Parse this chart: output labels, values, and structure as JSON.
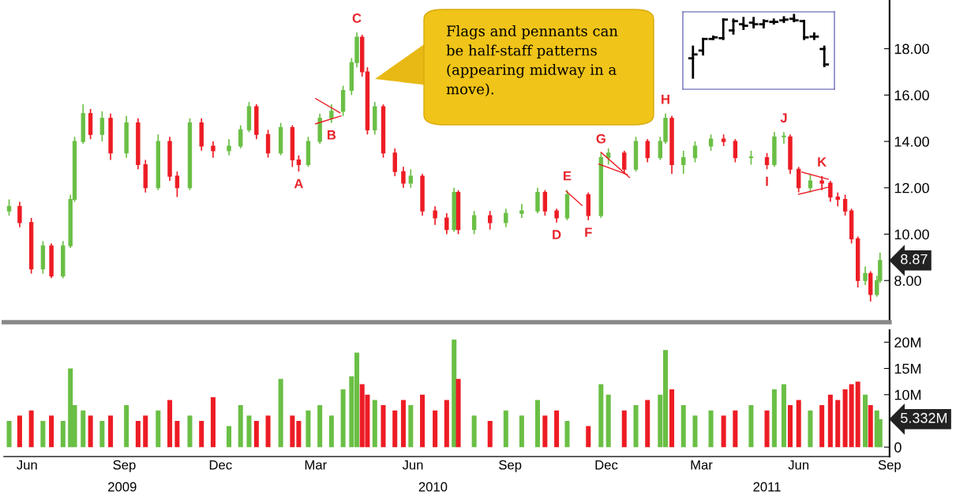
{
  "chart_data": [
    {
      "type": "candlestick",
      "x": [
        "2009-05-29",
        "2009-06-08",
        "2009-06-19",
        "2009-06-30",
        "2009-07-08",
        "2009-07-19",
        "2009-07-26",
        "2009-07-30",
        "2009-08-07",
        "2009-08-14",
        "2009-08-25",
        "2009-09-02",
        "2009-09-17",
        "2009-09-28",
        "2009-10-05",
        "2009-10-17",
        "2009-10-28",
        "2009-11-04",
        "2009-11-16",
        "2009-11-27",
        "2009-12-08",
        "2009-12-23",
        "2010-01-03",
        "2010-01-11",
        "2010-01-18",
        "2010-01-29",
        "2010-02-10",
        "2010-02-21",
        "2010-02-27",
        "2010-03-08",
        "2010-03-19",
        "2010-03-30",
        "2010-04-10",
        "2010-04-18",
        "2010-04-23",
        "2010-04-28",
        "2010-05-03",
        "2010-05-10",
        "2010-05-18",
        "2010-05-29",
        "2010-06-06",
        "2010-06-13",
        "2010-06-24",
        "2010-07-06",
        "2010-07-17",
        "2010-07-24",
        "2010-07-28",
        "2010-08-12",
        "2010-08-27",
        "2010-09-11",
        "2010-09-26",
        "2010-10-11",
        "2010-10-18",
        "2010-10-29",
        "2010-11-08",
        "2010-11-28",
        "2010-12-10",
        "2010-12-17",
        "2011-01-01",
        "2011-01-12",
        "2011-01-23",
        "2011-02-04",
        "2011-02-09",
        "2011-02-15",
        "2011-02-26",
        "2011-03-09",
        "2011-03-24",
        "2011-04-05",
        "2011-04-16",
        "2011-05-01",
        "2011-05-16",
        "2011-05-23",
        "2011-06-01",
        "2011-06-07",
        "2011-06-15",
        "2011-06-26",
        "2011-07-07",
        "2011-07-15",
        "2011-07-22",
        "2011-07-29",
        "2011-08-04",
        "2011-08-10",
        "2011-08-17",
        "2011-08-22",
        "2011-08-28",
        "2011-08-31"
      ],
      "ohlc": [
        [
          11.0,
          11.5,
          10.8,
          11.2
        ],
        [
          11.2,
          11.4,
          10.3,
          10.5
        ],
        [
          10.5,
          10.7,
          8.3,
          8.5
        ],
        [
          8.5,
          9.7,
          8.3,
          9.5
        ],
        [
          9.5,
          9.6,
          8.1,
          8.2
        ],
        [
          8.2,
          9.7,
          8.1,
          9.5
        ],
        [
          9.5,
          11.7,
          9.4,
          11.5
        ],
        [
          11.5,
          14.2,
          11.4,
          14.0
        ],
        [
          14.0,
          15.6,
          13.9,
          15.2
        ],
        [
          15.2,
          15.4,
          14.1,
          14.3
        ],
        [
          14.3,
          15.3,
          14.0,
          15.0
        ],
        [
          15.0,
          15.2,
          13.2,
          13.5
        ],
        [
          13.5,
          15.1,
          13.3,
          14.8
        ],
        [
          14.8,
          15.0,
          12.8,
          13.0
        ],
        [
          13.0,
          13.2,
          11.8,
          12.0
        ],
        [
          12.0,
          14.3,
          11.9,
          14.0
        ],
        [
          14.0,
          14.2,
          12.3,
          12.5
        ],
        [
          12.5,
          12.7,
          11.6,
          12.0
        ],
        [
          12.0,
          15.0,
          11.9,
          14.8
        ],
        [
          14.8,
          15.0,
          13.6,
          13.8
        ],
        [
          13.8,
          14.0,
          13.3,
          13.6
        ],
        [
          13.6,
          14.1,
          13.4,
          13.8
        ],
        [
          13.8,
          14.7,
          13.7,
          14.5
        ],
        [
          14.5,
          15.7,
          14.4,
          15.5
        ],
        [
          15.5,
          15.6,
          14.1,
          14.3
        ],
        [
          14.3,
          14.5,
          13.3,
          13.5
        ],
        [
          13.5,
          14.8,
          13.4,
          14.6
        ],
        [
          14.6,
          14.7,
          12.9,
          13.2
        ],
        [
          13.2,
          13.4,
          12.7,
          13.0
        ],
        [
          13.0,
          14.2,
          12.9,
          14.0
        ],
        [
          14.0,
          15.2,
          13.9,
          15.0
        ],
        [
          15.0,
          15.6,
          14.8,
          15.3
        ],
        [
          15.3,
          16.4,
          15.1,
          16.2
        ],
        [
          16.2,
          17.6,
          16.0,
          17.4
        ],
        [
          17.4,
          18.7,
          17.2,
          18.5
        ],
        [
          18.5,
          18.6,
          16.8,
          17.0
        ],
        [
          17.0,
          17.2,
          14.3,
          14.5
        ],
        [
          14.5,
          15.7,
          14.3,
          15.5
        ],
        [
          15.5,
          15.6,
          13.3,
          13.5
        ],
        [
          13.5,
          13.7,
          12.5,
          12.7
        ],
        [
          12.7,
          12.9,
          12.0,
          12.2
        ],
        [
          12.2,
          12.8,
          12.0,
          12.5
        ],
        [
          12.5,
          12.6,
          10.8,
          11.0
        ],
        [
          11.0,
          11.2,
          10.4,
          10.7
        ],
        [
          10.7,
          10.9,
          10.0,
          10.2
        ],
        [
          10.2,
          12.0,
          10.1,
          11.8
        ],
        [
          11.8,
          11.9,
          10.0,
          10.2
        ],
        [
          10.2,
          11.0,
          10.0,
          10.8
        ],
        [
          10.8,
          11.0,
          10.2,
          10.5
        ],
        [
          10.5,
          11.1,
          10.3,
          10.9
        ],
        [
          10.9,
          11.3,
          10.7,
          11.0
        ],
        [
          11.0,
          12.0,
          10.9,
          11.8
        ],
        [
          11.8,
          11.9,
          10.8,
          11.0
        ],
        [
          11.0,
          11.1,
          10.5,
          10.7
        ],
        [
          10.7,
          11.9,
          10.6,
          11.7
        ],
        [
          11.7,
          11.8,
          10.6,
          10.8
        ],
        [
          10.8,
          13.5,
          10.7,
          13.3
        ],
        [
          13.3,
          13.7,
          13.0,
          13.5
        ],
        [
          13.5,
          13.6,
          12.6,
          12.8
        ],
        [
          12.8,
          14.2,
          12.7,
          14.0
        ],
        [
          14.0,
          14.1,
          13.1,
          13.3
        ],
        [
          13.3,
          14.2,
          13.2,
          14.0
        ],
        [
          14.0,
          15.2,
          13.9,
          15.0
        ],
        [
          15.0,
          15.1,
          12.6,
          13.0
        ],
        [
          13.0,
          13.6,
          12.6,
          13.3
        ],
        [
          13.3,
          14.0,
          13.1,
          13.8
        ],
        [
          13.8,
          14.3,
          13.6,
          14.1
        ],
        [
          14.1,
          14.3,
          13.8,
          14.0
        ],
        [
          14.0,
          14.1,
          13.1,
          13.3
        ],
        [
          13.3,
          13.6,
          13.0,
          13.3
        ],
        [
          13.3,
          13.5,
          12.8,
          13.0
        ],
        [
          13.0,
          14.4,
          12.9,
          14.2
        ],
        [
          14.2,
          14.4,
          13.9,
          14.2
        ],
        [
          14.2,
          14.3,
          12.6,
          12.8
        ],
        [
          12.8,
          12.9,
          11.8,
          12.0
        ],
        [
          12.0,
          12.6,
          11.8,
          12.3
        ],
        [
          12.3,
          12.5,
          11.9,
          12.2
        ],
        [
          12.2,
          12.3,
          11.4,
          11.6
        ],
        [
          11.6,
          11.8,
          11.2,
          11.5
        ],
        [
          11.5,
          11.7,
          10.8,
          11.0
        ],
        [
          11.0,
          11.1,
          9.6,
          9.8
        ],
        [
          9.8,
          9.9,
          7.7,
          8.0
        ],
        [
          8.0,
          8.6,
          7.8,
          8.3
        ],
        [
          8.3,
          8.4,
          7.1,
          7.4
        ],
        [
          7.4,
          8.2,
          7.3,
          8.0
        ],
        [
          8.0,
          9.2,
          7.9,
          8.87
        ]
      ],
      "colors": [
        "#6abf45",
        "#ed1c24",
        "#ed1c24",
        "#6abf45",
        "#ed1c24",
        "#6abf45",
        "#6abf45",
        "#6abf45",
        "#6abf45",
        "#ed1c24",
        "#6abf45",
        "#ed1c24",
        "#6abf45",
        "#ed1c24",
        "#ed1c24",
        "#6abf45",
        "#ed1c24",
        "#ed1c24",
        "#6abf45",
        "#ed1c24",
        "#ed1c24",
        "#6abf45",
        "#6abf45",
        "#6abf45",
        "#ed1c24",
        "#ed1c24",
        "#6abf45",
        "#ed1c24",
        "#ed1c24",
        "#6abf45",
        "#6abf45",
        "#6abf45",
        "#6abf45",
        "#6abf45",
        "#6abf45",
        "#ed1c24",
        "#ed1c24",
        "#6abf45",
        "#ed1c24",
        "#ed1c24",
        "#ed1c24",
        "#6abf45",
        "#ed1c24",
        "#ed1c24",
        "#ed1c24",
        "#6abf45",
        "#ed1c24",
        "#6abf45",
        "#ed1c24",
        "#6abf45",
        "#6abf45",
        "#6abf45",
        "#ed1c24",
        "#ed1c24",
        "#6abf45",
        "#ed1c24",
        "#6abf45",
        "#6abf45",
        "#ed1c24",
        "#6abf45",
        "#ed1c24",
        "#6abf45",
        "#6abf45",
        "#ed1c24",
        "#6abf45",
        "#6abf45",
        "#6abf45",
        "#ed1c24",
        "#ed1c24",
        "#6abf45",
        "#ed1c24",
        "#6abf45",
        "#6abf45",
        "#ed1c24",
        "#ed1c24",
        "#6abf45",
        "#ed1c24",
        "#ed1c24",
        "#ed1c24",
        "#ed1c24",
        "#ed1c24",
        "#ed1c24",
        "#6abf45",
        "#ed1c24",
        "#6abf45",
        "#6abf45"
      ],
      "series": [
        {
          "type": "line",
          "color": "#ed1c24",
          "x": [
            "2010-03-15",
            "2010-04-07"
          ],
          "values": [
            15.85,
            15.24
          ]
        },
        {
          "type": "line",
          "color": "#ed1c24",
          "x": [
            "2010-03-15",
            "2010-04-08"
          ],
          "values": [
            14.76,
            15.1
          ]
        },
        {
          "type": "line",
          "color": "#ed1c24",
          "x": [
            "2010-11-07",
            "2010-11-22"
          ],
          "values": [
            11.86,
            11.24
          ]
        },
        {
          "type": "line",
          "color": "#ed1c24",
          "x": [
            "2010-12-10",
            "2011-01-06"
          ],
          "values": [
            13.53,
            12.44
          ]
        },
        {
          "type": "line",
          "color": "#ed1c24",
          "x": [
            "2010-12-08",
            "2011-01-04"
          ],
          "values": [
            13.02,
            12.57
          ]
        },
        {
          "type": "line",
          "color": "#ed1c24",
          "x": [
            "2011-06-18",
            "2011-07-13"
          ],
          "values": [
            12.68,
            12.37
          ]
        },
        {
          "type": "line",
          "color": "#ed1c24",
          "x": [
            "2011-06-15",
            "2011-07-16"
          ],
          "values": [
            11.72,
            12.06
          ]
        }
      ],
      "xlim": [
        "2009-05-24",
        "2011-09-09"
      ],
      "ylim": [
        6.2,
        20.1
      ],
      "yticks": [
        {
          "value": 8,
          "label": "8.00"
        },
        {
          "value": 10,
          "label": "10.00"
        },
        {
          "value": 12,
          "label": "12.00"
        },
        {
          "value": 14,
          "label": "14.00"
        },
        {
          "value": 16,
          "label": "16.00"
        },
        {
          "value": 18,
          "label": "18.00"
        }
      ],
      "tick_labels": "y",
      "annotations": [
        {
          "text": "A",
          "x": "2010-02-27",
          "y": 12.7
        },
        {
          "text": "B",
          "x": "2010-03-30",
          "y": 14.8
        },
        {
          "text": "C",
          "x": "2010-04-23",
          "y": 18.7
        },
        {
          "text": "D",
          "x": "2010-10-29",
          "y": 10.5
        },
        {
          "text": "E",
          "x": "2010-11-08",
          "y": 11.9
        },
        {
          "text": "F",
          "x": "2010-11-28",
          "y": 10.6
        },
        {
          "text": "G",
          "x": "2010-12-10",
          "y": 13.5
        },
        {
          "text": "H",
          "x": "2011-02-09",
          "y": 15.2
        },
        {
          "text": "I",
          "x": "2011-05-16",
          "y": 12.8
        },
        {
          "text": "J",
          "x": "2011-06-01",
          "y": 14.4
        },
        {
          "text": "K",
          "x": "2011-07-07",
          "y": 12.5
        },
        {
          "text": "8.87",
          "x": "2011-08-31",
          "y": 8.87
        },
        "Flags and pennants can\nbe half-staff patterns\n(appearing midway in a\nmove)."
      ]
    },
    {
      "type": "bar",
      "x": [
        "2009-05-29",
        "2009-06-08",
        "2009-06-19",
        "2009-06-30",
        "2009-07-08",
        "2009-07-19",
        "2009-07-26",
        "2009-07-30",
        "2009-08-07",
        "2009-08-14",
        "2009-08-25",
        "2009-09-02",
        "2009-09-17",
        "2009-09-28",
        "2009-10-05",
        "2009-10-17",
        "2009-10-28",
        "2009-11-04",
        "2009-11-16",
        "2009-11-27",
        "2009-12-08",
        "2009-12-23",
        "2010-01-03",
        "2010-01-11",
        "2010-01-18",
        "2010-01-29",
        "2010-02-10",
        "2010-02-21",
        "2010-02-27",
        "2010-03-08",
        "2010-03-19",
        "2010-03-30",
        "2010-04-10",
        "2010-04-18",
        "2010-04-23",
        "2010-04-28",
        "2010-05-03",
        "2010-05-10",
        "2010-05-18",
        "2010-05-29",
        "2010-06-06",
        "2010-06-13",
        "2010-06-24",
        "2010-07-06",
        "2010-07-17",
        "2010-07-24",
        "2010-07-28",
        "2010-08-12",
        "2010-08-27",
        "2010-09-11",
        "2010-09-26",
        "2010-10-11",
        "2010-10-18",
        "2010-10-29",
        "2010-11-08",
        "2010-11-28",
        "2010-12-10",
        "2010-12-17",
        "2011-01-01",
        "2011-01-12",
        "2011-01-23",
        "2011-02-04",
        "2011-02-09",
        "2011-02-15",
        "2011-02-26",
        "2011-03-09",
        "2011-03-24",
        "2011-04-05",
        "2011-04-16",
        "2011-05-01",
        "2011-05-16",
        "2011-05-23",
        "2011-06-01",
        "2011-06-07",
        "2011-06-15",
        "2011-06-26",
        "2011-07-07",
        "2011-07-15",
        "2011-07-22",
        "2011-07-29",
        "2011-08-04",
        "2011-08-10",
        "2011-08-17",
        "2011-08-22",
        "2011-08-28",
        "2011-08-31"
      ],
      "values": [
        5,
        6,
        7,
        5,
        6,
        5,
        15,
        8,
        7,
        6,
        5,
        6,
        8,
        5,
        6,
        7,
        9,
        5,
        6,
        5,
        9.5,
        4,
        8,
        6,
        5,
        6,
        13,
        6,
        5,
        7,
        8,
        6,
        11,
        13.5,
        18,
        12,
        10,
        9,
        8,
        7,
        9,
        8,
        10,
        7,
        9,
        20.5,
        13,
        6,
        5,
        7,
        6,
        9,
        6,
        7,
        5,
        4,
        12,
        10,
        7,
        8,
        9,
        10,
        18.5,
        11,
        8,
        6,
        7,
        6,
        7,
        8,
        7,
        11,
        12,
        8,
        9,
        7,
        8,
        10,
        9,
        11,
        12,
        12.5,
        10,
        8,
        7,
        5.332
      ],
      "colors": [
        "#6abf45",
        "#ed1c24",
        "#ed1c24",
        "#6abf45",
        "#ed1c24",
        "#6abf45",
        "#6abf45",
        "#6abf45",
        "#6abf45",
        "#ed1c24",
        "#6abf45",
        "#ed1c24",
        "#6abf45",
        "#ed1c24",
        "#ed1c24",
        "#6abf45",
        "#ed1c24",
        "#ed1c24",
        "#6abf45",
        "#ed1c24",
        "#ed1c24",
        "#6abf45",
        "#6abf45",
        "#6abf45",
        "#ed1c24",
        "#ed1c24",
        "#6abf45",
        "#ed1c24",
        "#ed1c24",
        "#6abf45",
        "#6abf45",
        "#6abf45",
        "#6abf45",
        "#6abf45",
        "#6abf45",
        "#ed1c24",
        "#ed1c24",
        "#6abf45",
        "#ed1c24",
        "#ed1c24",
        "#ed1c24",
        "#6abf45",
        "#ed1c24",
        "#ed1c24",
        "#ed1c24",
        "#6abf45",
        "#ed1c24",
        "#6abf45",
        "#ed1c24",
        "#6abf45",
        "#6abf45",
        "#6abf45",
        "#ed1c24",
        "#ed1c24",
        "#6abf45",
        "#ed1c24",
        "#6abf45",
        "#6abf45",
        "#ed1c24",
        "#6abf45",
        "#ed1c24",
        "#6abf45",
        "#6abf45",
        "#ed1c24",
        "#6abf45",
        "#6abf45",
        "#6abf45",
        "#ed1c24",
        "#ed1c24",
        "#6abf45",
        "#ed1c24",
        "#6abf45",
        "#6abf45",
        "#ed1c24",
        "#ed1c24",
        "#6abf45",
        "#ed1c24",
        "#ed1c24",
        "#ed1c24",
        "#ed1c24",
        "#ed1c24",
        "#ed1c24",
        "#6abf45",
        "#ed1c24",
        "#6abf45",
        "#6abf45"
      ],
      "xlim": [
        "2009-05-24",
        "2011-09-09"
      ],
      "xticks": [
        {
          "value": "2009-06-15",
          "label": "Jun"
        },
        {
          "value": "2009-09-15",
          "label": "Sep"
        },
        {
          "value": "2009-12-15",
          "label": "Dec"
        },
        {
          "value": "2010-03-15",
          "label": "Mar"
        },
        {
          "value": "2010-06-15",
          "label": "Jun"
        },
        {
          "value": "2010-09-15",
          "label": "Sep"
        },
        {
          "value": "2010-12-15",
          "label": "Dec"
        },
        {
          "value": "2011-03-15",
          "label": "Mar"
        },
        {
          "value": "2011-06-15",
          "label": "Jun"
        },
        {
          "value": "2011-09-09",
          "label": "Sep"
        }
      ],
      "x2lim": [
        "2009-05-24",
        "2011-09-09"
      ],
      "x2ticks": [
        {
          "value": "2009-09-13",
          "label": "2009"
        },
        {
          "value": "2010-07-04",
          "label": "2010"
        },
        {
          "value": "2011-05-16",
          "label": "2011"
        }
      ],
      "ylim": [
        -1.8,
        22.3
      ],
      "yticks": [
        {
          "value": 0,
          "label": "0"
        },
        {
          "value": 10,
          "label": "10M"
        },
        {
          "value": 15,
          "label": "15M"
        },
        {
          "value": 20,
          "label": "20M"
        }
      ],
      "annotations": [
        {
          "text": "5.332M",
          "x": "2011-08-31",
          "y": 5.332
        }
      ]
    }
  ]
}
